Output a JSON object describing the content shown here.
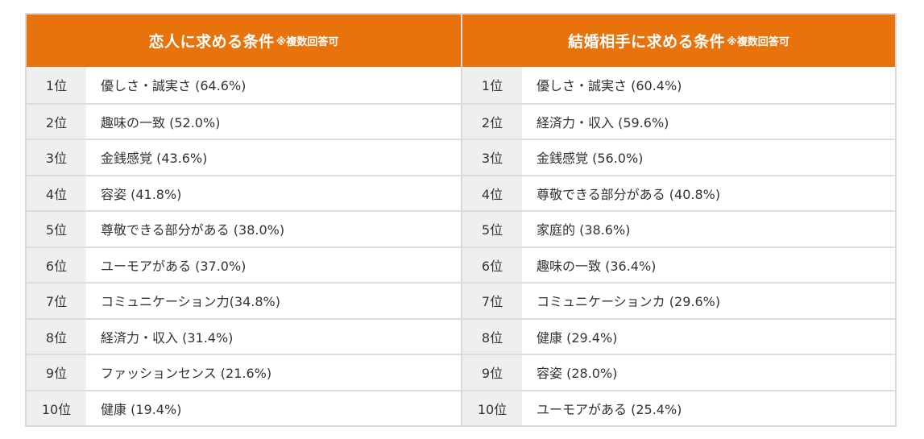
{
  "left": {
    "title": "恋人に求める条件",
    "note": "※複数回答可",
    "rows": [
      {
        "rank": "1位",
        "item": "優しさ・誠実さ (64.6%)"
      },
      {
        "rank": "2位",
        "item": "趣味の一致 (52.0%)"
      },
      {
        "rank": "3位",
        "item": "金銭感覚 (43.6%)"
      },
      {
        "rank": "4位",
        "item": "容姿 (41.8%)"
      },
      {
        "rank": "5位",
        "item": "尊敬できる部分がある (38.0%)"
      },
      {
        "rank": "6位",
        "item": "ユーモアがある (37.0%)"
      },
      {
        "rank": "7位",
        "item": "コミュニケーション力(34.8%)"
      },
      {
        "rank": "8位",
        "item": "経済力・収入 (31.4%)"
      },
      {
        "rank": "9位",
        "item": "ファッションセンス (21.6%)"
      },
      {
        "rank": "10位",
        "item": "健康 (19.4%)"
      }
    ]
  },
  "right": {
    "title": "結婚相手に求める条件",
    "note": "※複数回答可",
    "rows": [
      {
        "rank": "1位",
        "item": "優しさ・誠実さ (60.4%)"
      },
      {
        "rank": "2位",
        "item": "経済力・収入 (59.6%)"
      },
      {
        "rank": "3位",
        "item": "金銭感覚 (56.0%)"
      },
      {
        "rank": "4位",
        "item": "尊敬できる部分がある (40.8%)"
      },
      {
        "rank": "5位",
        "item": "家庭的 (38.6%)"
      },
      {
        "rank": "6位",
        "item": "趣味の一致 (36.4%)"
      },
      {
        "rank": "7位",
        "item": "コミュニケーションカ (29.6%)"
      },
      {
        "rank": "8位",
        "item": "健康 (29.4%)"
      },
      {
        "rank": "9位",
        "item": "容姿 (28.0%)"
      },
      {
        "rank": "10位",
        "item": "ユーモアがある (25.4%)"
      }
    ]
  },
  "colors": {
    "header": "#e8730d",
    "rank_bg": "#efefef",
    "border": "#d9d9d9"
  }
}
